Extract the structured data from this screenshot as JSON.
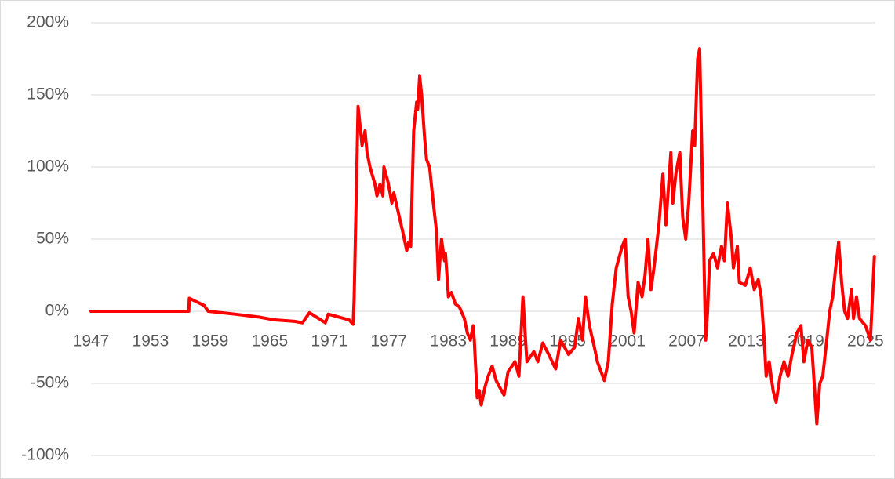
{
  "chart_data": {
    "type": "line",
    "color": "#ff0000",
    "grid": true,
    "x": [
      1947.0,
      1956.85,
      1956.9,
      1958.4,
      1958.8,
      1961.5,
      1963.9,
      1965.5,
      1967.5,
      1968.3,
      1969.0,
      1970.6,
      1970.9,
      1973.0,
      1973.4,
      1973.5,
      1973.9,
      1974.3,
      1974.6,
      1974.8,
      1975.1,
      1975.6,
      1975.8,
      1976.1,
      1976.4,
      1976.5,
      1976.9,
      1977.3,
      1977.5,
      1977.9,
      1978.4,
      1978.8,
      1979.0,
      1979.2,
      1979.5,
      1979.8,
      1979.9,
      1980.1,
      1980.3,
      1980.6,
      1980.8,
      1981.1,
      1981.4,
      1981.8,
      1982.0,
      1982.3,
      1982.6,
      1982.7,
      1983.0,
      1983.3,
      1983.7,
      1984.1,
      1984.6,
      1984.9,
      1985.2,
      1985.5,
      1985.6,
      1985.9,
      1986.1,
      1986.3,
      1986.7,
      1987.0,
      1987.4,
      1987.8,
      1988.1,
      1988.6,
      1989.0,
      1989.7,
      1990.1,
      1990.5,
      1990.9,
      1991.6,
      1992.0,
      1992.5,
      1993.1,
      1993.8,
      1994.3,
      1995.1,
      1995.7,
      1996.1,
      1996.5,
      1996.8,
      1997.2,
      1997.7,
      1998.0,
      1998.7,
      1999.1,
      1999.5,
      1999.9,
      2000.5,
      2000.8,
      2001.1,
      2001.4,
      2001.7,
      2002.1,
      2002.5,
      2002.8,
      2003.1,
      2003.4,
      2003.7,
      2004.2,
      2004.6,
      2004.9,
      2005.4,
      2005.6,
      2005.9,
      2006.3,
      2006.6,
      2006.9,
      2007.2,
      2007.6,
      2007.8,
      2008.1,
      2008.3,
      2008.4,
      2008.9,
      2009.1,
      2009.3,
      2009.7,
      2010.1,
      2010.5,
      2010.8,
      2011.1,
      2011.5,
      2011.7,
      2012.1,
      2012.3,
      2012.9,
      2013.4,
      2013.8,
      2014.2,
      2014.5,
      2014.8,
      2015.0,
      2015.3,
      2015.7,
      2016.0,
      2016.4,
      2016.8,
      2017.2,
      2017.6,
      2018.1,
      2018.5,
      2018.8,
      2019.2,
      2019.6,
      2020.1,
      2020.4,
      2020.7,
      2021.1,
      2021.4,
      2021.7,
      2022.0,
      2022.3,
      2022.6,
      2022.9,
      2023.2,
      2023.6,
      2023.8,
      2024.1,
      2024.4,
      2025.0,
      2025.5,
      2025.9
    ],
    "values": [
      0,
      0,
      9,
      4,
      0,
      -2,
      -4,
      -6,
      -7,
      -8,
      -1,
      -8,
      -2,
      -6,
      -9,
      8,
      142,
      115,
      125,
      110,
      100,
      88,
      80,
      88,
      80,
      100,
      90,
      75,
      82,
      70,
      55,
      42,
      48,
      45,
      125,
      145,
      140,
      163,
      150,
      120,
      105,
      100,
      80,
      55,
      22,
      50,
      35,
      40,
      10,
      13,
      5,
      3,
      -5,
      -15,
      -20,
      -10,
      -20,
      -60,
      -55,
      -65,
      -52,
      -45,
      -38,
      -48,
      -52,
      -58,
      -42,
      -35,
      -45,
      10,
      -35,
      -28,
      -35,
      -22,
      -30,
      -40,
      -20,
      -30,
      -25,
      -5,
      -20,
      10,
      -10,
      -25,
      -35,
      -48,
      -35,
      5,
      30,
      45,
      50,
      10,
      0,
      -15,
      20,
      10,
      25,
      50,
      15,
      30,
      60,
      95,
      60,
      110,
      75,
      95,
      110,
      65,
      50,
      75,
      125,
      115,
      175,
      182,
      150,
      -20,
      0,
      35,
      40,
      30,
      45,
      35,
      75,
      50,
      30,
      45,
      20,
      18,
      30,
      15,
      22,
      10,
      -20,
      -45,
      -35,
      -55,
      -63,
      -45,
      -35,
      -45,
      -30,
      -15,
      -10,
      -35,
      -20,
      -25,
      -78,
      -50,
      -45,
      -20,
      0,
      10,
      30,
      48,
      20,
      0,
      -5,
      15,
      -5,
      10,
      -5,
      -10,
      -20,
      38
    ],
    "xlim": [
      1947,
      2026
    ],
    "xticks": [
      1947,
      1953,
      1959,
      1965,
      1971,
      1977,
      1983,
      1989,
      1995,
      2001,
      2007,
      2013,
      2019,
      2025
    ],
    "ylim": [
      -100,
      200
    ],
    "yticks": [
      {
        "value": -100,
        "label": "-100%"
      },
      {
        "value": -50,
        "label": "-50%"
      },
      {
        "value": 0,
        "label": "0%"
      },
      {
        "value": 50,
        "label": "50%"
      },
      {
        "value": 100,
        "label": "100%"
      },
      {
        "value": 150,
        "label": "150%"
      },
      {
        "value": 200,
        "label": "200%"
      }
    ]
  }
}
